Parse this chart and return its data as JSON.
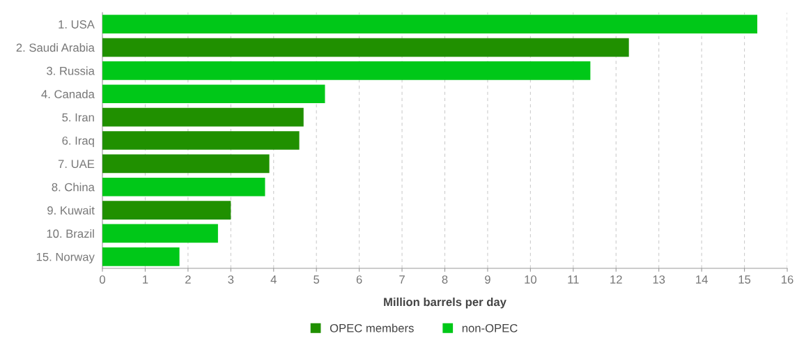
{
  "chart_data": {
    "type": "bar",
    "orientation": "horizontal",
    "xlabel": "Million barrels per day",
    "categories": [
      "1. USA",
      "2. Saudi Arabia",
      "3. Russia",
      "4. Canada",
      "5. Iran",
      "6. Iraq",
      "7. UAE",
      "8. China",
      "9. Kuwait",
      "10. Brazil",
      "15. Norway"
    ],
    "series": [
      {
        "name": "OPEC members",
        "color": "#209000",
        "values": [
          null,
          12.3,
          null,
          null,
          4.7,
          4.6,
          3.9,
          null,
          3.0,
          null,
          null
        ]
      },
      {
        "name": "non-OPEC",
        "color": "#00c818",
        "values": [
          15.3,
          null,
          11.4,
          5.2,
          null,
          null,
          null,
          3.8,
          null,
          2.7,
          1.8
        ]
      }
    ],
    "xlim": [
      0,
      16
    ],
    "xticks": [
      0,
      1,
      2,
      3,
      4,
      5,
      6,
      7,
      8,
      9,
      10,
      11,
      12,
      13,
      14,
      15,
      16
    ],
    "grid": "x",
    "legend": "bottom"
  }
}
